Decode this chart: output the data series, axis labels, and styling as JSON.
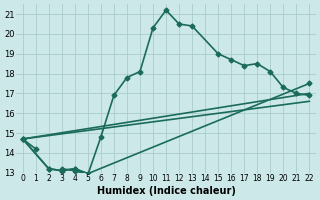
{
  "xlabel": "Humidex (Indice chaleur)",
  "ylabel": "",
  "xlim": [
    -0.5,
    22.5
  ],
  "ylim": [
    13,
    21.5
  ],
  "yticks": [
    13,
    14,
    15,
    16,
    17,
    18,
    19,
    20,
    21
  ],
  "xticks": [
    0,
    1,
    2,
    3,
    4,
    5,
    6,
    7,
    8,
    9,
    10,
    11,
    12,
    13,
    14,
    15,
    16,
    17,
    18,
    19,
    20,
    21,
    22
  ],
  "background_color": "#cce8e8",
  "grid_color": "#aacccc",
  "line_color": "#1a6b5a",
  "series_main": {
    "x": [
      0,
      1,
      2,
      3,
      4,
      5,
      6,
      7,
      8,
      9,
      10,
      11,
      12,
      13,
      15,
      16,
      17,
      18,
      19,
      20,
      21,
      22
    ],
    "y": [
      14.7,
      14.2,
      null,
      13.2,
      13.1,
      12.9,
      14.8,
      16.9,
      17.8,
      18.1,
      20.3,
      21.2,
      20.5,
      20.4,
      19.0,
      18.7,
      18.4,
      18.5,
      18.1,
      17.3,
      17.0,
      16.9
    ]
  },
  "series_linear1": {
    "x": [
      0,
      22
    ],
    "y": [
      14.7,
      17.0
    ]
  },
  "series_linear2": {
    "x": [
      0,
      22
    ],
    "y": [
      14.7,
      16.6
    ]
  },
  "series_with_markers": {
    "x": [
      0,
      2,
      3,
      4,
      5,
      22
    ],
    "y": [
      14.7,
      13.2,
      13.1,
      13.2,
      12.95,
      17.5
    ]
  }
}
